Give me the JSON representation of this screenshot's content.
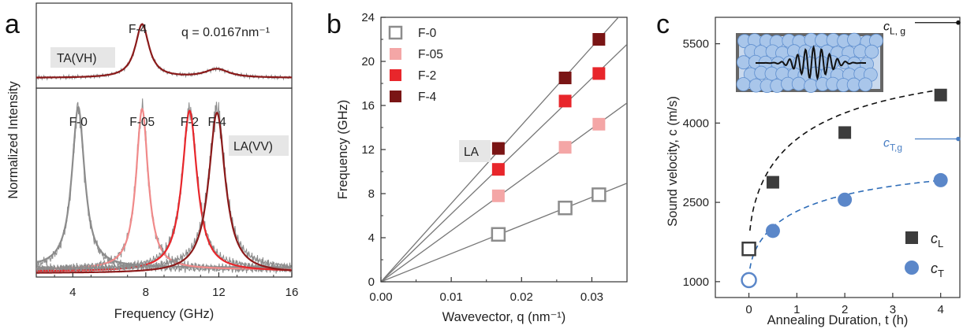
{
  "chart_data": [
    {
      "panel": "a",
      "type": "line",
      "xlabel": "Frequency (GHz)",
      "ylabel": "Normalized Intensity",
      "xlim": [
        2,
        16
      ],
      "xticks": [
        4,
        8,
        12,
        16
      ],
      "annotation_q": "q = 0.0167nm⁻¹",
      "top": {
        "label": "TA(VH)",
        "peak_label": "F-4",
        "series": [
          {
            "name": "F-4",
            "color": "#8b1a1a",
            "peaks": [
              {
                "x": 7.8,
                "height": 1.0,
                "width": 0.45
              },
              {
                "x": 11.9,
                "height": 0.16,
                "width": 0.8
              }
            ]
          }
        ]
      },
      "bottom": {
        "label": "LA(VV)",
        "series": [
          {
            "name": "F-0",
            "color": "#8c8c8c",
            "x0": 4.3,
            "width": 0.42
          },
          {
            "name": "F-05",
            "color": "#f08a8a",
            "x0": 7.8,
            "width": 0.4
          },
          {
            "name": "F-2",
            "color": "#e8262b",
            "x0": 10.4,
            "width": 0.5
          },
          {
            "name": "F-4",
            "color": "#8b1a1a",
            "x0": 11.9,
            "width": 0.55
          }
        ]
      }
    },
    {
      "panel": "b",
      "type": "scatter",
      "xlabel": "Wavevector, q (nm⁻¹)",
      "ylabel": "Frequency (GHz)",
      "xlim": [
        0,
        0.035
      ],
      "ylim": [
        0,
        24
      ],
      "xticks": [
        "0.00",
        "0.01",
        "0.02",
        "0.03"
      ],
      "yticks": [
        0,
        4,
        8,
        12,
        16,
        20,
        24
      ],
      "annotation": "LA",
      "x": [
        0.0167,
        0.0262,
        0.031
      ],
      "series": [
        {
          "name": "F-0",
          "color": "#8c8c8c",
          "hollow": true,
          "values": [
            4.3,
            6.7,
            7.9
          ]
        },
        {
          "name": "F-05",
          "color": "#f4a6a6",
          "hollow": false,
          "values": [
            7.8,
            12.2,
            14.3
          ]
        },
        {
          "name": "F-2",
          "color": "#e8262b",
          "hollow": false,
          "values": [
            10.2,
            16.4,
            18.9
          ]
        },
        {
          "name": "F-4",
          "color": "#7a1515",
          "hollow": false,
          "values": [
            12.1,
            18.5,
            22.0
          ]
        }
      ]
    },
    {
      "panel": "c",
      "type": "scatter",
      "xlabel": "Annealing Duration, t (h)",
      "ylabel": "Sound velocity, c (m/s)",
      "xlim": [
        -0.7,
        4.4
      ],
      "ylim": [
        700,
        6000
      ],
      "xticks": [
        0,
        1,
        2,
        3,
        4
      ],
      "yticks": [
        1000,
        2500,
        4000,
        5500
      ],
      "x": [
        0,
        0.5,
        2,
        4
      ],
      "series": [
        {
          "name": "c_L",
          "legend": "c",
          "sub": "L",
          "color": "#3c3c3c",
          "marker": "square",
          "values": [
            1620,
            2880,
            3820,
            4530
          ]
        },
        {
          "name": "c_T",
          "legend": "c",
          "sub": "T",
          "color": "#5b87c9",
          "marker": "circle",
          "values": [
            1030,
            1960,
            2550,
            2920
          ]
        }
      ],
      "limits": [
        {
          "main": "c",
          "sub": "L, g",
          "value": 5900,
          "color": "#111111"
        },
        {
          "main": "c",
          "sub": "T,g",
          "value": 3700,
          "color": "#4a7fc4"
        }
      ]
    }
  ]
}
